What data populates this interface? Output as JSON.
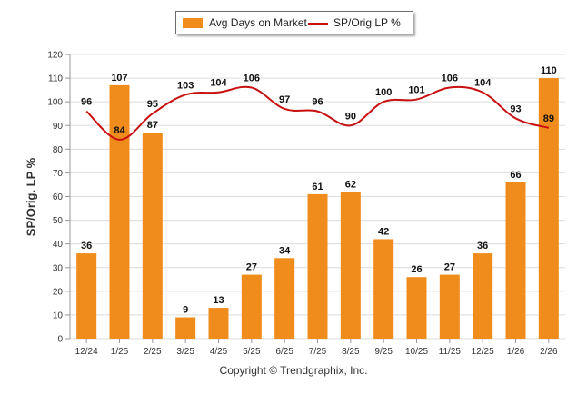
{
  "legend": {
    "bar_label": "Avg Days on Market",
    "line_label": "SP/Orig LP %"
  },
  "copyright": "Copyright © Trendgraphix, Inc.",
  "colors": {
    "bar": "#f08c1c",
    "line": "#c81010",
    "grid": "#dcdcdc"
  },
  "chart_data": {
    "type": "bar",
    "title": "",
    "xlabel": "",
    "ylabel": "SP/Orig. LP %",
    "ylim": [
      0,
      120
    ],
    "yticks": [
      0,
      10,
      20,
      30,
      40,
      50,
      60,
      70,
      80,
      90,
      100,
      110,
      120
    ],
    "grid": true,
    "legend_position": "top-center",
    "categories": [
      "12/24",
      "1/25",
      "2/25",
      "3/25",
      "4/25",
      "5/25",
      "6/25",
      "7/25",
      "8/25",
      "9/25",
      "10/25",
      "11/25",
      "12/25",
      "1/26",
      "2/26"
    ],
    "series": [
      {
        "name": "Avg Days on Market",
        "type": "bar",
        "values": [
          36,
          107,
          87,
          9,
          13,
          27,
          34,
          61,
          62,
          42,
          26,
          27,
          36,
          66,
          110
        ]
      },
      {
        "name": "SP/Orig LP %",
        "type": "line",
        "values": [
          96,
          84,
          95,
          103,
          104,
          106,
          97,
          96,
          90,
          100,
          101,
          106,
          104,
          93,
          89
        ]
      }
    ]
  }
}
